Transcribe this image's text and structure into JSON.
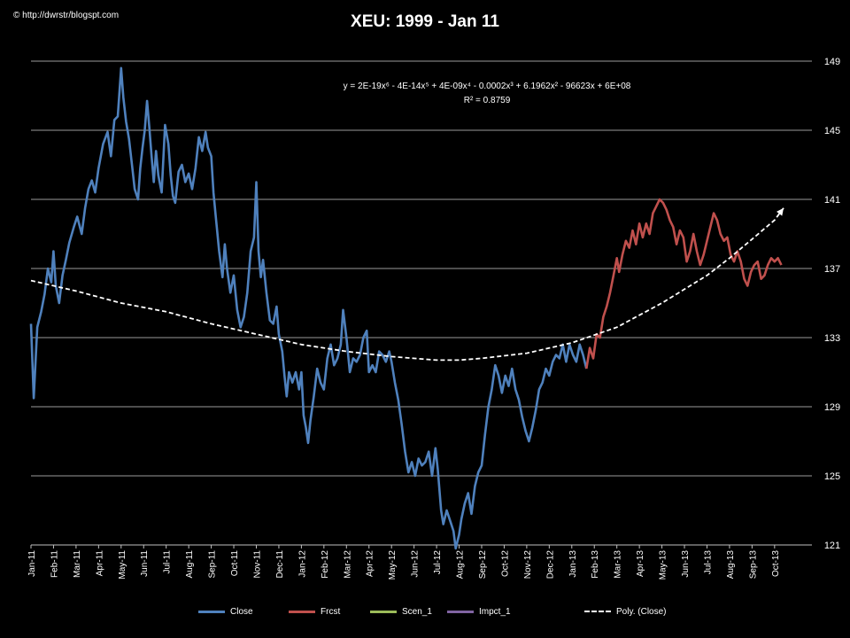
{
  "watermark": "© http://dwrstr/blogspt.com",
  "chart_data": {
    "type": "line",
    "title": "XEU: 1999 - Jan 11",
    "equation": "y = 2E-19x⁶ - 4E-14x⁵ + 4E-09x⁴ - 0.0002x³ + 6.1962x² - 96623x + 6E+08",
    "r_squared": "R² = 0.8759",
    "y_ticks": [
      121,
      125,
      129,
      133,
      137,
      141,
      145,
      149
    ],
    "ylim": [
      121,
      149
    ],
    "y_axis_position": "right",
    "grid": "horizontal",
    "x_period_range": [
      0,
      34.5
    ],
    "categories": [
      "Jan-11",
      "Feb-11",
      "Mar-11",
      "Apr-11",
      "May-11",
      "Jun-11",
      "Jul-11",
      "Aug-11",
      "Sep-11",
      "Oct-11",
      "Nov-11",
      "Dec-11",
      "Jan-12",
      "Feb-12",
      "Mar-12",
      "Apr-12",
      "May-12",
      "Jun-12",
      "Jul-12",
      "Aug-12",
      "Sep-12",
      "Oct-12",
      "Nov-12",
      "Dec-12",
      "Jan-13",
      "Feb-13",
      "Mar-13",
      "Apr-13",
      "May-13",
      "Jun-13",
      "Jul-13",
      "Aug-13",
      "Sep-13",
      "Oct-13"
    ],
    "series": [
      {
        "name": "Close",
        "color": "#4f81bd",
        "style": "solid",
        "points": [
          [
            0,
            133.8
          ],
          [
            0.12,
            129.5
          ],
          [
            0.28,
            133.6
          ],
          [
            0.45,
            134.5
          ],
          [
            0.6,
            135.5
          ],
          [
            0.75,
            137.0
          ],
          [
            0.9,
            136.2
          ],
          [
            1.0,
            138.0
          ],
          [
            1.1,
            136.0
          ],
          [
            1.25,
            135.0
          ],
          [
            1.4,
            136.6
          ],
          [
            1.55,
            137.5
          ],
          [
            1.7,
            138.5
          ],
          [
            1.9,
            139.4
          ],
          [
            2.05,
            140.0
          ],
          [
            2.25,
            139.0
          ],
          [
            2.4,
            140.5
          ],
          [
            2.55,
            141.6
          ],
          [
            2.7,
            142.1
          ],
          [
            2.85,
            141.4
          ],
          [
            3.0,
            142.8
          ],
          [
            3.2,
            144.2
          ],
          [
            3.4,
            144.9
          ],
          [
            3.55,
            143.5
          ],
          [
            3.7,
            145.6
          ],
          [
            3.85,
            145.8
          ],
          [
            4.0,
            148.6
          ],
          [
            4.1,
            146.9
          ],
          [
            4.22,
            145.5
          ],
          [
            4.35,
            144.5
          ],
          [
            4.5,
            142.8
          ],
          [
            4.6,
            141.6
          ],
          [
            4.75,
            141.0
          ],
          [
            4.85,
            142.8
          ],
          [
            4.95,
            144.0
          ],
          [
            5.05,
            145.0
          ],
          [
            5.15,
            146.7
          ],
          [
            5.25,
            145.2
          ],
          [
            5.35,
            143.5
          ],
          [
            5.45,
            142.0
          ],
          [
            5.55,
            143.8
          ],
          [
            5.65,
            142.4
          ],
          [
            5.8,
            141.4
          ],
          [
            5.95,
            145.3
          ],
          [
            6.1,
            144.2
          ],
          [
            6.2,
            142.4
          ],
          [
            6.3,
            141.2
          ],
          [
            6.4,
            140.8
          ],
          [
            6.55,
            142.6
          ],
          [
            6.7,
            143.0
          ],
          [
            6.85,
            142.0
          ],
          [
            7.0,
            142.5
          ],
          [
            7.15,
            141.6
          ],
          [
            7.3,
            142.8
          ],
          [
            7.45,
            144.6
          ],
          [
            7.6,
            143.8
          ],
          [
            7.75,
            144.9
          ],
          [
            7.85,
            144.0
          ],
          [
            8.0,
            143.5
          ],
          [
            8.1,
            141.4
          ],
          [
            8.2,
            140.0
          ],
          [
            8.35,
            138.0
          ],
          [
            8.5,
            136.5
          ],
          [
            8.6,
            138.4
          ],
          [
            8.7,
            137.0
          ],
          [
            8.85,
            135.6
          ],
          [
            9.0,
            136.6
          ],
          [
            9.15,
            134.6
          ],
          [
            9.3,
            133.6
          ],
          [
            9.45,
            134.2
          ],
          [
            9.6,
            135.6
          ],
          [
            9.75,
            138.0
          ],
          [
            9.9,
            138.8
          ],
          [
            10.0,
            142.0
          ],
          [
            10.1,
            138.0
          ],
          [
            10.2,
            136.5
          ],
          [
            10.3,
            137.5
          ],
          [
            10.45,
            135.6
          ],
          [
            10.6,
            134.0
          ],
          [
            10.75,
            133.8
          ],
          [
            10.9,
            134.8
          ],
          [
            11.0,
            133.2
          ],
          [
            11.15,
            132.2
          ],
          [
            11.25,
            130.8
          ],
          [
            11.35,
            129.6
          ],
          [
            11.45,
            131.0
          ],
          [
            11.6,
            130.4
          ],
          [
            11.75,
            131.0
          ],
          [
            11.9,
            130.0
          ],
          [
            12.0,
            131.0
          ],
          [
            12.1,
            128.5
          ],
          [
            12.2,
            127.8
          ],
          [
            12.3,
            126.9
          ],
          [
            12.4,
            128.2
          ],
          [
            12.55,
            129.6
          ],
          [
            12.7,
            131.2
          ],
          [
            12.85,
            130.4
          ],
          [
            13.0,
            130.0
          ],
          [
            13.15,
            131.8
          ],
          [
            13.3,
            132.6
          ],
          [
            13.45,
            131.4
          ],
          [
            13.6,
            131.8
          ],
          [
            13.75,
            132.6
          ],
          [
            13.85,
            134.6
          ],
          [
            14.0,
            133.0
          ],
          [
            14.15,
            131.0
          ],
          [
            14.3,
            131.8
          ],
          [
            14.45,
            131.6
          ],
          [
            14.6,
            132.0
          ],
          [
            14.75,
            133.0
          ],
          [
            14.9,
            133.4
          ],
          [
            15.0,
            131.0
          ],
          [
            15.15,
            131.4
          ],
          [
            15.3,
            131.0
          ],
          [
            15.45,
            132.2
          ],
          [
            15.6,
            132.0
          ],
          [
            15.75,
            131.6
          ],
          [
            15.9,
            132.2
          ],
          [
            16.0,
            131.6
          ],
          [
            16.15,
            130.4
          ],
          [
            16.3,
            129.4
          ],
          [
            16.45,
            128.0
          ],
          [
            16.6,
            126.4
          ],
          [
            16.75,
            125.2
          ],
          [
            16.9,
            125.8
          ],
          [
            17.05,
            125.0
          ],
          [
            17.2,
            126.0
          ],
          [
            17.35,
            125.6
          ],
          [
            17.5,
            125.8
          ],
          [
            17.65,
            126.4
          ],
          [
            17.8,
            125.0
          ],
          [
            17.95,
            126.6
          ],
          [
            18.05,
            125.4
          ],
          [
            18.2,
            123.0
          ],
          [
            18.3,
            122.2
          ],
          [
            18.45,
            123.0
          ],
          [
            18.6,
            122.4
          ],
          [
            18.75,
            121.8
          ],
          [
            18.85,
            120.8
          ],
          [
            19.0,
            121.6
          ],
          [
            19.1,
            122.5
          ],
          [
            19.25,
            123.4
          ],
          [
            19.4,
            124.0
          ],
          [
            19.55,
            122.8
          ],
          [
            19.7,
            124.4
          ],
          [
            19.85,
            125.2
          ],
          [
            20.0,
            125.6
          ],
          [
            20.15,
            127.4
          ],
          [
            20.3,
            129.0
          ],
          [
            20.45,
            130.0
          ],
          [
            20.6,
            131.4
          ],
          [
            20.75,
            130.8
          ],
          [
            20.9,
            129.8
          ],
          [
            21.05,
            130.8
          ],
          [
            21.2,
            130.2
          ],
          [
            21.35,
            131.2
          ],
          [
            21.5,
            130.0
          ],
          [
            21.65,
            129.4
          ],
          [
            21.8,
            128.4
          ],
          [
            21.95,
            127.6
          ],
          [
            22.1,
            127.0
          ],
          [
            22.25,
            127.8
          ],
          [
            22.4,
            128.8
          ],
          [
            22.55,
            130.0
          ],
          [
            22.7,
            130.4
          ],
          [
            22.85,
            131.2
          ],
          [
            23.0,
            130.8
          ],
          [
            23.15,
            131.6
          ],
          [
            23.3,
            132.0
          ],
          [
            23.45,
            131.8
          ],
          [
            23.6,
            132.6
          ],
          [
            23.75,
            131.6
          ],
          [
            23.9,
            132.6
          ],
          [
            24.05,
            132.0
          ],
          [
            24.2,
            131.6
          ],
          [
            24.35,
            132.6
          ],
          [
            24.5,
            132.0
          ],
          [
            24.65,
            131.2
          ]
        ]
      },
      {
        "name": "Frcst",
        "color": "#c0504d",
        "style": "solid",
        "points": [
          [
            24.65,
            131.2
          ],
          [
            24.8,
            132.4
          ],
          [
            24.95,
            131.8
          ],
          [
            25.1,
            133.2
          ],
          [
            25.25,
            133.0
          ],
          [
            25.4,
            134.2
          ],
          [
            25.55,
            134.8
          ],
          [
            25.7,
            135.6
          ],
          [
            25.85,
            136.6
          ],
          [
            26.0,
            137.6
          ],
          [
            26.1,
            136.8
          ],
          [
            26.25,
            137.8
          ],
          [
            26.4,
            138.6
          ],
          [
            26.55,
            138.2
          ],
          [
            26.7,
            139.2
          ],
          [
            26.85,
            138.4
          ],
          [
            27.0,
            139.6
          ],
          [
            27.15,
            138.8
          ],
          [
            27.3,
            139.6
          ],
          [
            27.45,
            139.0
          ],
          [
            27.6,
            140.2
          ],
          [
            27.75,
            140.6
          ],
          [
            27.9,
            141.0
          ],
          [
            28.05,
            140.8
          ],
          [
            28.2,
            140.4
          ],
          [
            28.35,
            139.8
          ],
          [
            28.5,
            139.4
          ],
          [
            28.65,
            138.4
          ],
          [
            28.8,
            139.2
          ],
          [
            28.95,
            138.8
          ],
          [
            29.1,
            137.4
          ],
          [
            29.25,
            138.0
          ],
          [
            29.4,
            139.0
          ],
          [
            29.55,
            138.0
          ],
          [
            29.7,
            137.2
          ],
          [
            29.85,
            137.8
          ],
          [
            30.0,
            138.6
          ],
          [
            30.15,
            139.4
          ],
          [
            30.3,
            140.2
          ],
          [
            30.45,
            139.8
          ],
          [
            30.6,
            139.0
          ],
          [
            30.75,
            138.6
          ],
          [
            30.9,
            138.8
          ],
          [
            31.05,
            137.8
          ],
          [
            31.2,
            137.4
          ],
          [
            31.35,
            138.0
          ],
          [
            31.5,
            137.4
          ],
          [
            31.65,
            136.4
          ],
          [
            31.8,
            136.0
          ],
          [
            31.95,
            136.8
          ],
          [
            32.1,
            137.2
          ],
          [
            32.25,
            137.4
          ],
          [
            32.4,
            136.4
          ],
          [
            32.55,
            136.6
          ],
          [
            32.7,
            137.2
          ],
          [
            32.85,
            137.6
          ],
          [
            33.0,
            137.4
          ],
          [
            33.15,
            137.6
          ],
          [
            33.3,
            137.2
          ]
        ]
      },
      {
        "name": "Scen_1",
        "color": "#9bbb59",
        "style": "solid",
        "points": []
      },
      {
        "name": "Impct_1",
        "color": "#8064a2",
        "style": "solid",
        "points": []
      },
      {
        "name": "Poly. (Close)",
        "color": "#ffffff",
        "style": "dashed",
        "points": [
          [
            0,
            136.3
          ],
          [
            2,
            135.7
          ],
          [
            4,
            135.0
          ],
          [
            6,
            134.5
          ],
          [
            8,
            133.8
          ],
          [
            10,
            133.2
          ],
          [
            12,
            132.6
          ],
          [
            14,
            132.2
          ],
          [
            16,
            131.9
          ],
          [
            18,
            131.7
          ],
          [
            19,
            131.7
          ],
          [
            20,
            131.8
          ],
          [
            22,
            132.1
          ],
          [
            24,
            132.7
          ],
          [
            26,
            133.6
          ],
          [
            28,
            135.0
          ],
          [
            30,
            136.6
          ],
          [
            31,
            137.6
          ],
          [
            32,
            138.7
          ],
          [
            33,
            139.8
          ],
          [
            33.4,
            140.5
          ]
        ]
      }
    ]
  }
}
